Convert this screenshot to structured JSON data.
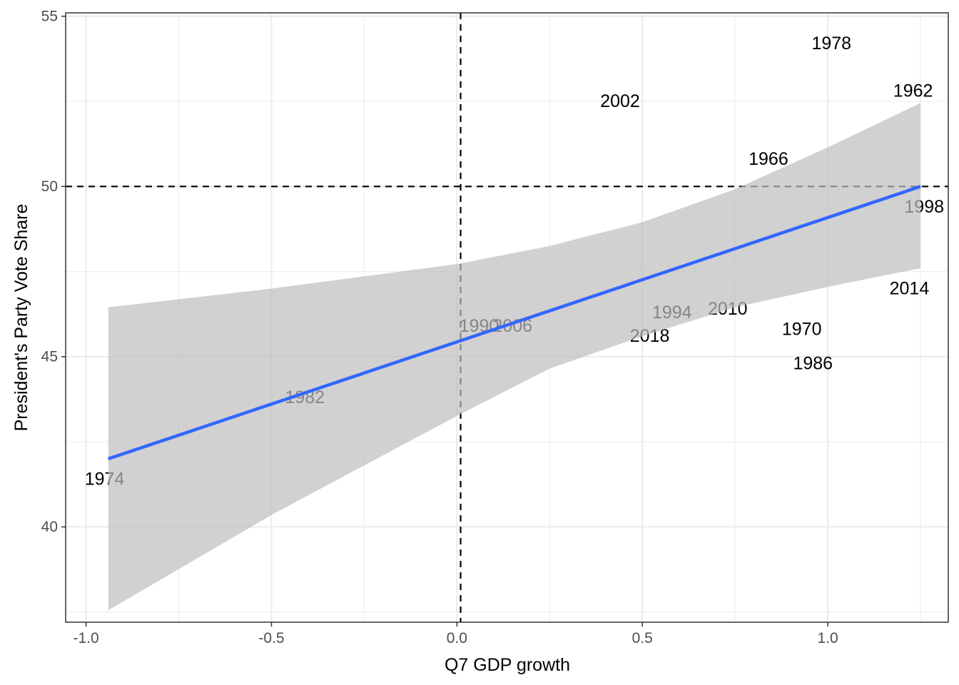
{
  "chart_data": {
    "type": "scatter",
    "title": "",
    "xlabel": "Q7 GDP growth",
    "ylabel": "President's Party Vote Share",
    "xlim": [
      -1.055,
      1.325
    ],
    "ylim": [
      37.2,
      55.1
    ],
    "x_ticks": [
      -1.0,
      -0.5,
      0.0,
      0.5,
      1.0
    ],
    "x_tick_labels": [
      "-1.0",
      "-0.5",
      "0.0",
      "0.5",
      "1.0"
    ],
    "y_ticks": [
      40,
      45,
      50,
      55
    ],
    "y_tick_labels": [
      "40",
      "45",
      "50",
      "55"
    ],
    "grid": true,
    "theme": "black-and-white",
    "reference_lines": {
      "x": 0.01,
      "y": 50
    },
    "points": [
      {
        "label": "1962",
        "x": 1.23,
        "y": 52.8
      },
      {
        "label": "1966",
        "x": 0.84,
        "y": 50.8
      },
      {
        "label": "1970",
        "x": 0.93,
        "y": 45.8
      },
      {
        "label": "1974",
        "x": -0.95,
        "y": 41.4
      },
      {
        "label": "1978",
        "x": 1.01,
        "y": 54.2
      },
      {
        "label": "1982",
        "x": -0.41,
        "y": 43.8
      },
      {
        "label": "1986",
        "x": 0.96,
        "y": 44.8
      },
      {
        "label": "1990",
        "x": 0.06,
        "y": 45.9
      },
      {
        "label": "1994",
        "x": 0.58,
        "y": 46.3
      },
      {
        "label": "1998",
        "x": 1.26,
        "y": 49.4
      },
      {
        "label": "2002",
        "x": 0.44,
        "y": 52.5
      },
      {
        "label": "2006",
        "x": 0.15,
        "y": 45.9
      },
      {
        "label": "2010",
        "x": 0.73,
        "y": 46.4
      },
      {
        "label": "2014",
        "x": 1.22,
        "y": 47.0
      },
      {
        "label": "2018",
        "x": 0.52,
        "y": 45.6
      }
    ],
    "fit": {
      "method": "linear",
      "x_start": -0.94,
      "x_end": 1.25,
      "line": {
        "x": [
          -0.94,
          1.25
        ],
        "y": [
          42.0,
          50.0
        ]
      },
      "confidence_band": {
        "x": [
          -0.94,
          -0.5,
          0.0,
          0.25,
          0.5,
          0.75,
          1.0,
          1.25
        ],
        "upper": [
          46.45,
          47.0,
          47.72,
          48.25,
          48.95,
          49.92,
          51.15,
          52.45
        ],
        "lower": [
          37.55,
          40.35,
          43.26,
          44.65,
          45.6,
          46.45,
          47.05,
          47.6
        ]
      }
    },
    "colors": {
      "fit_line": "#3366FF",
      "band": "#bebebe",
      "grid": "#ebebeb",
      "reference": "#000000",
      "text": "#000000",
      "ticks": "#4d4d4d"
    }
  }
}
